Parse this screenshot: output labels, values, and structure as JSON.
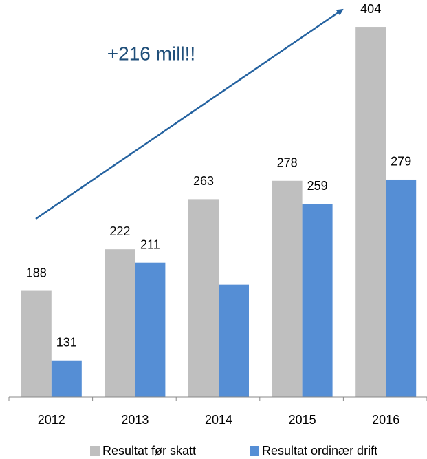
{
  "chart_data": {
    "type": "bar",
    "annotation": "+216 mill!!",
    "categories": [
      "2012",
      "2013",
      "2014",
      "2015",
      "2016"
    ],
    "series": [
      {
        "name": "Resultat før skatt",
        "color": "#bfbfbf",
        "values": [
          188,
          222,
          263,
          278,
          404
        ]
      },
      {
        "name": "Resultat ordinær drift",
        "color": "#558ed5",
        "values": [
          131,
          211,
          193,
          259,
          279
        ],
        "value_labels": [
          "131",
          "211",
          null,
          "259",
          "279"
        ]
      }
    ],
    "ylim": [
      101,
      426
    ],
    "legend": "bottom"
  }
}
